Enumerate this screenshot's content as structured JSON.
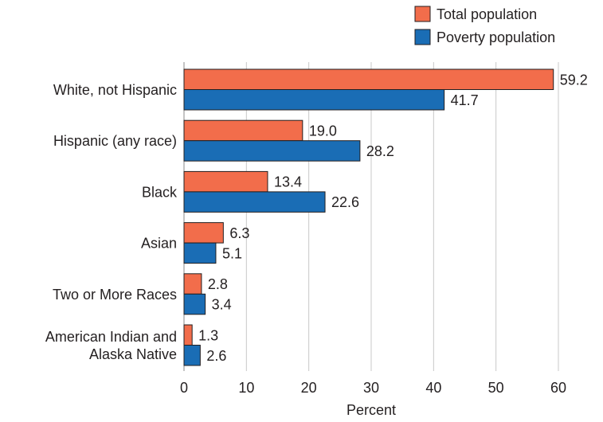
{
  "chart_data": {
    "type": "bar",
    "orientation": "horizontal",
    "categories": [
      [
        "White, not Hispanic"
      ],
      [
        "Hispanic (any race)"
      ],
      [
        "Black"
      ],
      [
        "Asian"
      ],
      [
        "Two or More Races"
      ],
      [
        "American Indian and",
        "Alaska Native"
      ]
    ],
    "series": [
      {
        "name": "Total population",
        "color": "#f26d4b",
        "values": [
          59.2,
          19.0,
          13.4,
          6.3,
          2.8,
          1.3
        ],
        "labels": [
          "59.2",
          "19.0",
          "13.4",
          "6.3",
          "2.8",
          "1.3"
        ]
      },
      {
        "name": "Poverty population",
        "color": "#1a6db5",
        "values": [
          41.7,
          28.2,
          22.6,
          5.1,
          3.4,
          2.6
        ],
        "labels": [
          "41.7",
          "28.2",
          "22.6",
          "5.1",
          "3.4",
          "2.6"
        ]
      }
    ],
    "title": "",
    "xlabel": "Percent",
    "ylabel": "",
    "xlim": [
      0,
      60
    ],
    "xticks": [
      0,
      10,
      20,
      30,
      40,
      50,
      60
    ],
    "grid": true,
    "legend": "top-right"
  }
}
